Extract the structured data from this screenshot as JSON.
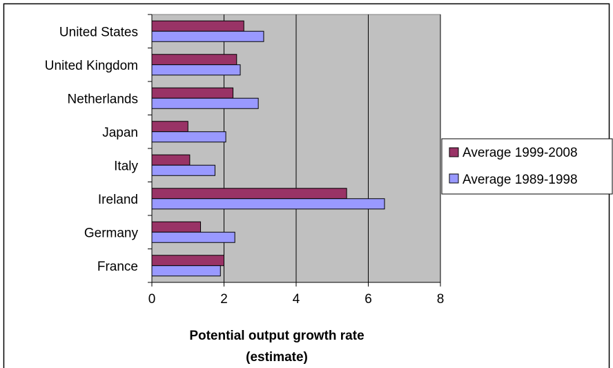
{
  "chart_data": {
    "type": "bar",
    "orientation": "horizontal",
    "categories": [
      "United States",
      "United Kingdom",
      "Netherlands",
      "Japan",
      "Italy",
      "Ireland",
      "Germany",
      "France"
    ],
    "series": [
      {
        "name": "Average 1999-2008",
        "color": "#993366",
        "values": [
          2.55,
          2.35,
          2.25,
          1.0,
          1.05,
          5.4,
          1.35,
          2.0
        ]
      },
      {
        "name": "Average 1989-1998",
        "color": "#9999ff",
        "values": [
          3.1,
          2.45,
          2.95,
          2.05,
          1.75,
          6.45,
          2.3,
          1.9
        ]
      }
    ],
    "xlim": [
      0,
      8
    ],
    "xticks": [
      0,
      2,
      4,
      6,
      8
    ],
    "xlabel_lines": [
      "Potential output growth rate",
      "(estimate)"
    ],
    "ylabel": "",
    "title": "",
    "grid": "vertical major gridlines",
    "plot_background": "#c0c0c0",
    "legend_position": "right"
  }
}
